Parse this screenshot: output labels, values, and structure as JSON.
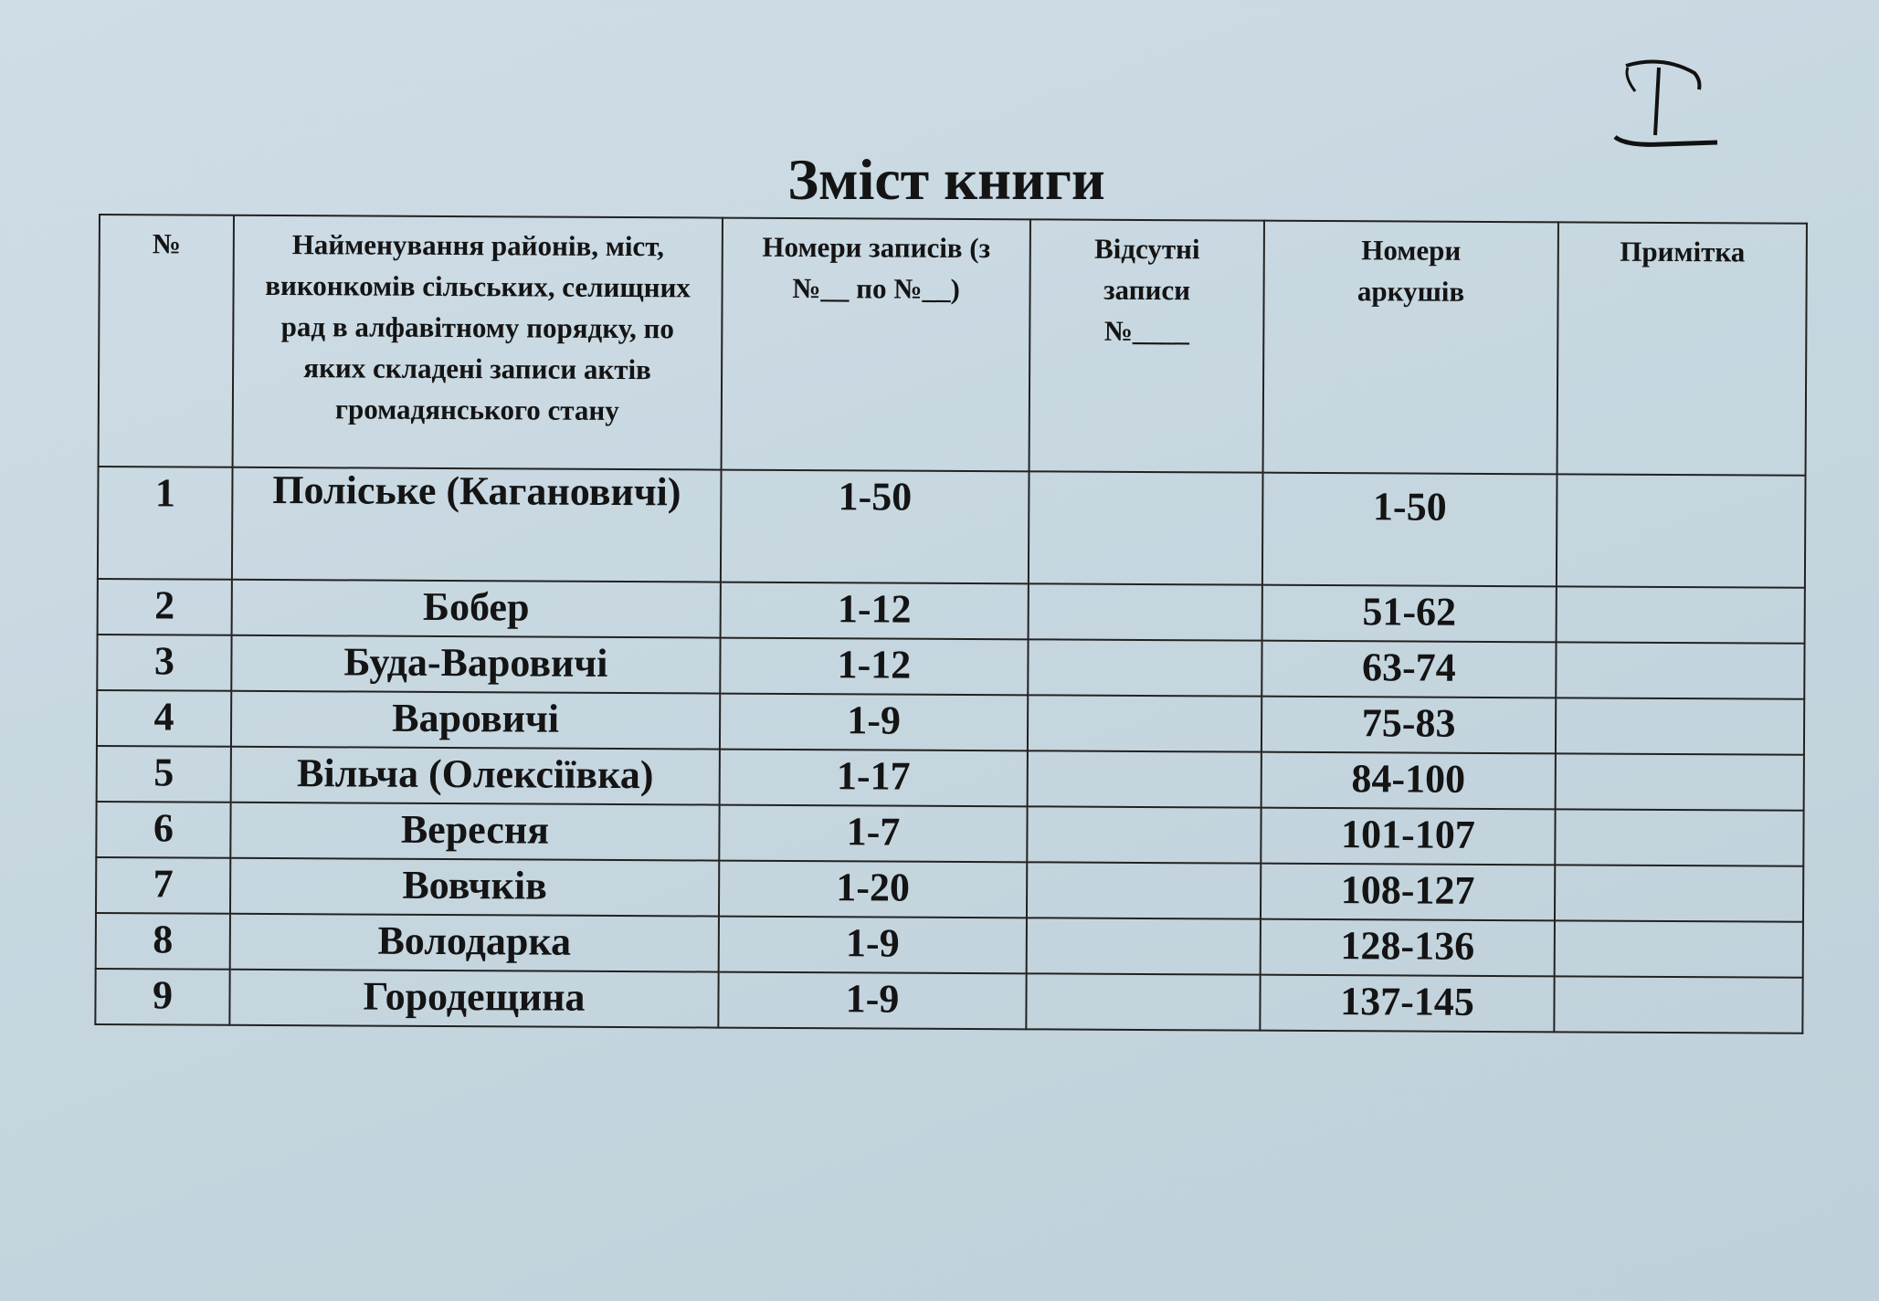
{
  "title": "Зміст книги",
  "handwritten_mark": "I",
  "table": {
    "headers": [
      "№",
      "Найменування районів, міст, виконкомів сільських, селищних рад в алфавітному порядку, по яких складені записи актів громадянського стану",
      "Номери записів (з №__ по №__)",
      "Відсутні записи №____",
      "Номери аркушів",
      "Примітка"
    ],
    "rows": [
      {
        "no": "1",
        "name": "Поліське (Кагановичі)",
        "records": "1-50",
        "missing": "",
        "sheets": "1-50",
        "note": ""
      },
      {
        "no": "2",
        "name": "Бобер",
        "records": "1-12",
        "missing": "",
        "sheets": "51-62",
        "note": ""
      },
      {
        "no": "3",
        "name": "Буда-Варовичі",
        "records": "1-12",
        "missing": "",
        "sheets": "63-74",
        "note": ""
      },
      {
        "no": "4",
        "name": "Варовичі",
        "records": "1-9",
        "missing": "",
        "sheets": "75-83",
        "note": ""
      },
      {
        "no": "5",
        "name": "Вільча (Олексіївка)",
        "records": "1-17",
        "missing": "",
        "sheets": "84-100",
        "note": ""
      },
      {
        "no": "6",
        "name": "Вересня",
        "records": "1-7",
        "missing": "",
        "sheets": "101-107",
        "note": ""
      },
      {
        "no": "7",
        "name": "Вовчків",
        "records": "1-20",
        "missing": "",
        "sheets": "108-127",
        "note": ""
      },
      {
        "no": "8",
        "name": "Володарка",
        "records": "1-9",
        "missing": "",
        "sheets": "128-136",
        "note": ""
      },
      {
        "no": "9",
        "name": "Городещина",
        "records": "1-9",
        "missing": "",
        "sheets": "137-145",
        "note": ""
      }
    ]
  }
}
